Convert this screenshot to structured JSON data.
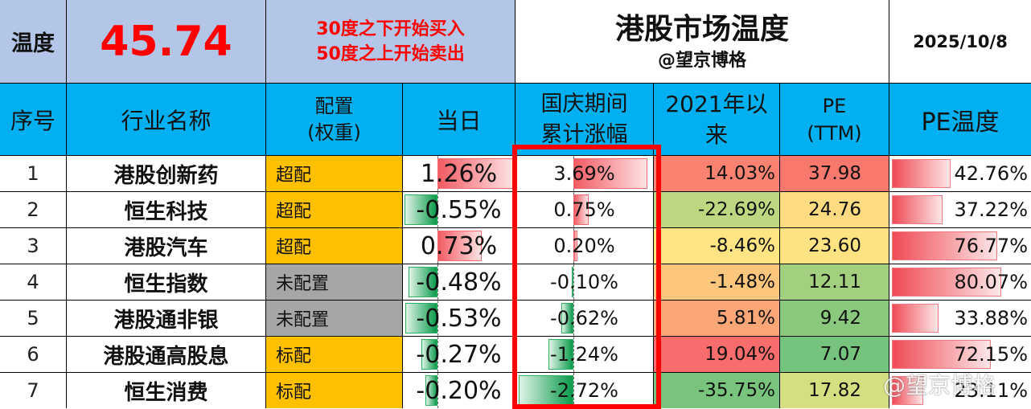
{
  "summary": {
    "temp_label": "温度",
    "temp_value": "45.74",
    "rule_buy": "30度之下开始买入",
    "rule_sell": "50度之上开始卖出",
    "title": "港股市场温度",
    "author": "@望京博格",
    "date": "2025/10/8"
  },
  "headers": {
    "index": "序号",
    "industry": "行业名称",
    "allocation_l1": "配置",
    "allocation_l2": "(权重)",
    "day": "当日",
    "holiday_l1": "国庆期间",
    "holiday_l2": "累计涨幅",
    "since_l1": "2021年以",
    "since_l2": "来",
    "pe_l1": "PE",
    "pe_l2": "(TTM)",
    "pe_temp": "PE温度"
  },
  "rows": [
    {
      "index": "1",
      "industry": "港股创新药",
      "allocation": "超配",
      "allocation_level": "超配",
      "day": "1.26%",
      "day_value": 1.26,
      "holiday": "3.69%",
      "holiday_value": 3.69,
      "since": "14.03%",
      "since_value": 14.03,
      "pe": "37.98",
      "pe_value": 37.98,
      "pe_temp": "42.76%",
      "pe_temp_value": 42.76
    },
    {
      "index": "2",
      "industry": "恒生科技",
      "allocation": "超配",
      "allocation_level": "超配",
      "day": "-0.55%",
      "day_value": -0.55,
      "holiday": "0.75%",
      "holiday_value": 0.75,
      "since": "-22.69%",
      "since_value": -22.69,
      "pe": "24.76",
      "pe_value": 24.76,
      "pe_temp": "37.22%",
      "pe_temp_value": 37.22
    },
    {
      "index": "3",
      "industry": "港股汽车",
      "allocation": "超配",
      "allocation_level": "超配",
      "day": "0.73%",
      "day_value": 0.73,
      "holiday": "0.20%",
      "holiday_value": 0.2,
      "since": "-8.46%",
      "since_value": -8.46,
      "pe": "23.60",
      "pe_value": 23.6,
      "pe_temp": "76.77%",
      "pe_temp_value": 76.77
    },
    {
      "index": "4",
      "industry": "恒生指数",
      "allocation": "未配置",
      "allocation_level": "未配置",
      "day": "-0.48%",
      "day_value": -0.48,
      "holiday": "-0.10%",
      "holiday_value": -0.1,
      "since": "-1.48%",
      "since_value": -1.48,
      "pe": "12.11",
      "pe_value": 12.11,
      "pe_temp": "80.07%",
      "pe_temp_value": 80.07
    },
    {
      "index": "5",
      "industry": "港股通非银",
      "allocation": "未配置",
      "allocation_level": "未配置",
      "day": "-0.53%",
      "day_value": -0.53,
      "holiday": "-0.62%",
      "holiday_value": -0.62,
      "since": "5.81%",
      "since_value": 5.81,
      "pe": "9.42",
      "pe_value": 9.42,
      "pe_temp": "33.88%",
      "pe_temp_value": 33.88
    },
    {
      "index": "6",
      "industry": "港股通高股息",
      "allocation": "标配",
      "allocation_level": "标配",
      "day": "-0.27%",
      "day_value": -0.27,
      "holiday": "-1.24%",
      "holiday_value": -1.24,
      "since": "19.04%",
      "since_value": 19.04,
      "pe": "7.07",
      "pe_value": 7.07,
      "pe_temp": "72.15%",
      "pe_temp_value": 72.15
    },
    {
      "index": "7",
      "industry": "恒生消费",
      "allocation": "标配",
      "allocation_level": "标配",
      "day": "-0.20%",
      "day_value": -0.2,
      "holiday": "-2.72%",
      "holiday_value": -2.72,
      "since": "-35.75%",
      "since_value": -35.75,
      "pe": "17.82",
      "pe_value": 17.82,
      "pe_temp": "23.11%",
      "pe_temp_value": 23.11
    }
  ],
  "watermark": "@望京博格",
  "colors": {
    "top_band": "#b4c6e7",
    "header_band": "#00b0f0",
    "temp_value": "#ff0000",
    "rules_text": "#ff0000",
    "allocation_overweight": "#ffc000",
    "allocation_none": "#a6a6a6",
    "allocation_standard": "#ffc000",
    "bar_positive": "#f35b63",
    "bar_negative": "#0a9a4a",
    "highlight_box": "#ff0000"
  }
}
